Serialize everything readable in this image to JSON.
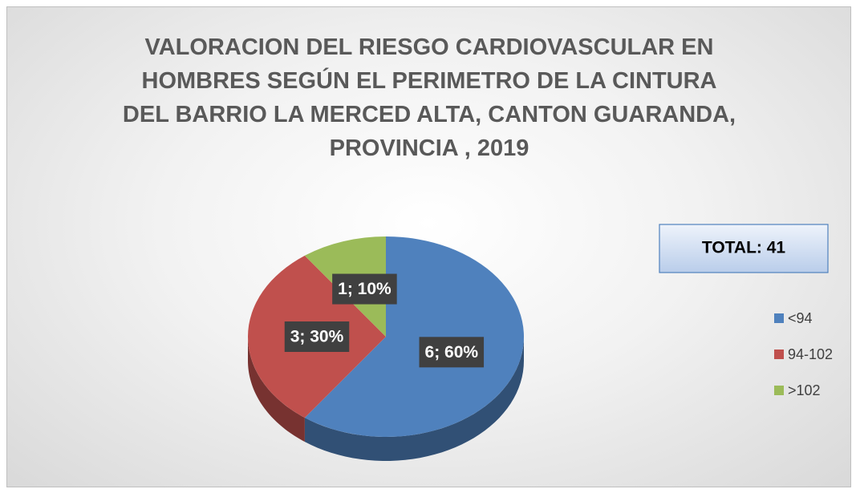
{
  "chart_data": {
    "type": "pie3d",
    "title": "VALORACION DEL RIESGO CARDIOVASCULAR EN HOMBRES SEGÚN EL PERIMETRO DE LA CINTURA DEL BARRIO LA MERCED ALTA, CANTON GUARANDA, PROVINCIA , 2019",
    "categories": [
      "<94",
      "94-102",
      ">102"
    ],
    "values": [
      6,
      3,
      1
    ],
    "value_labels": [
      "6; 60%",
      "3; 30%",
      "1; 10%"
    ],
    "colors": [
      "#4f81bd",
      "#c0504d",
      "#9bbb59"
    ],
    "annotations": [
      "TOTAL: 41"
    ],
    "legend": "right"
  }
}
